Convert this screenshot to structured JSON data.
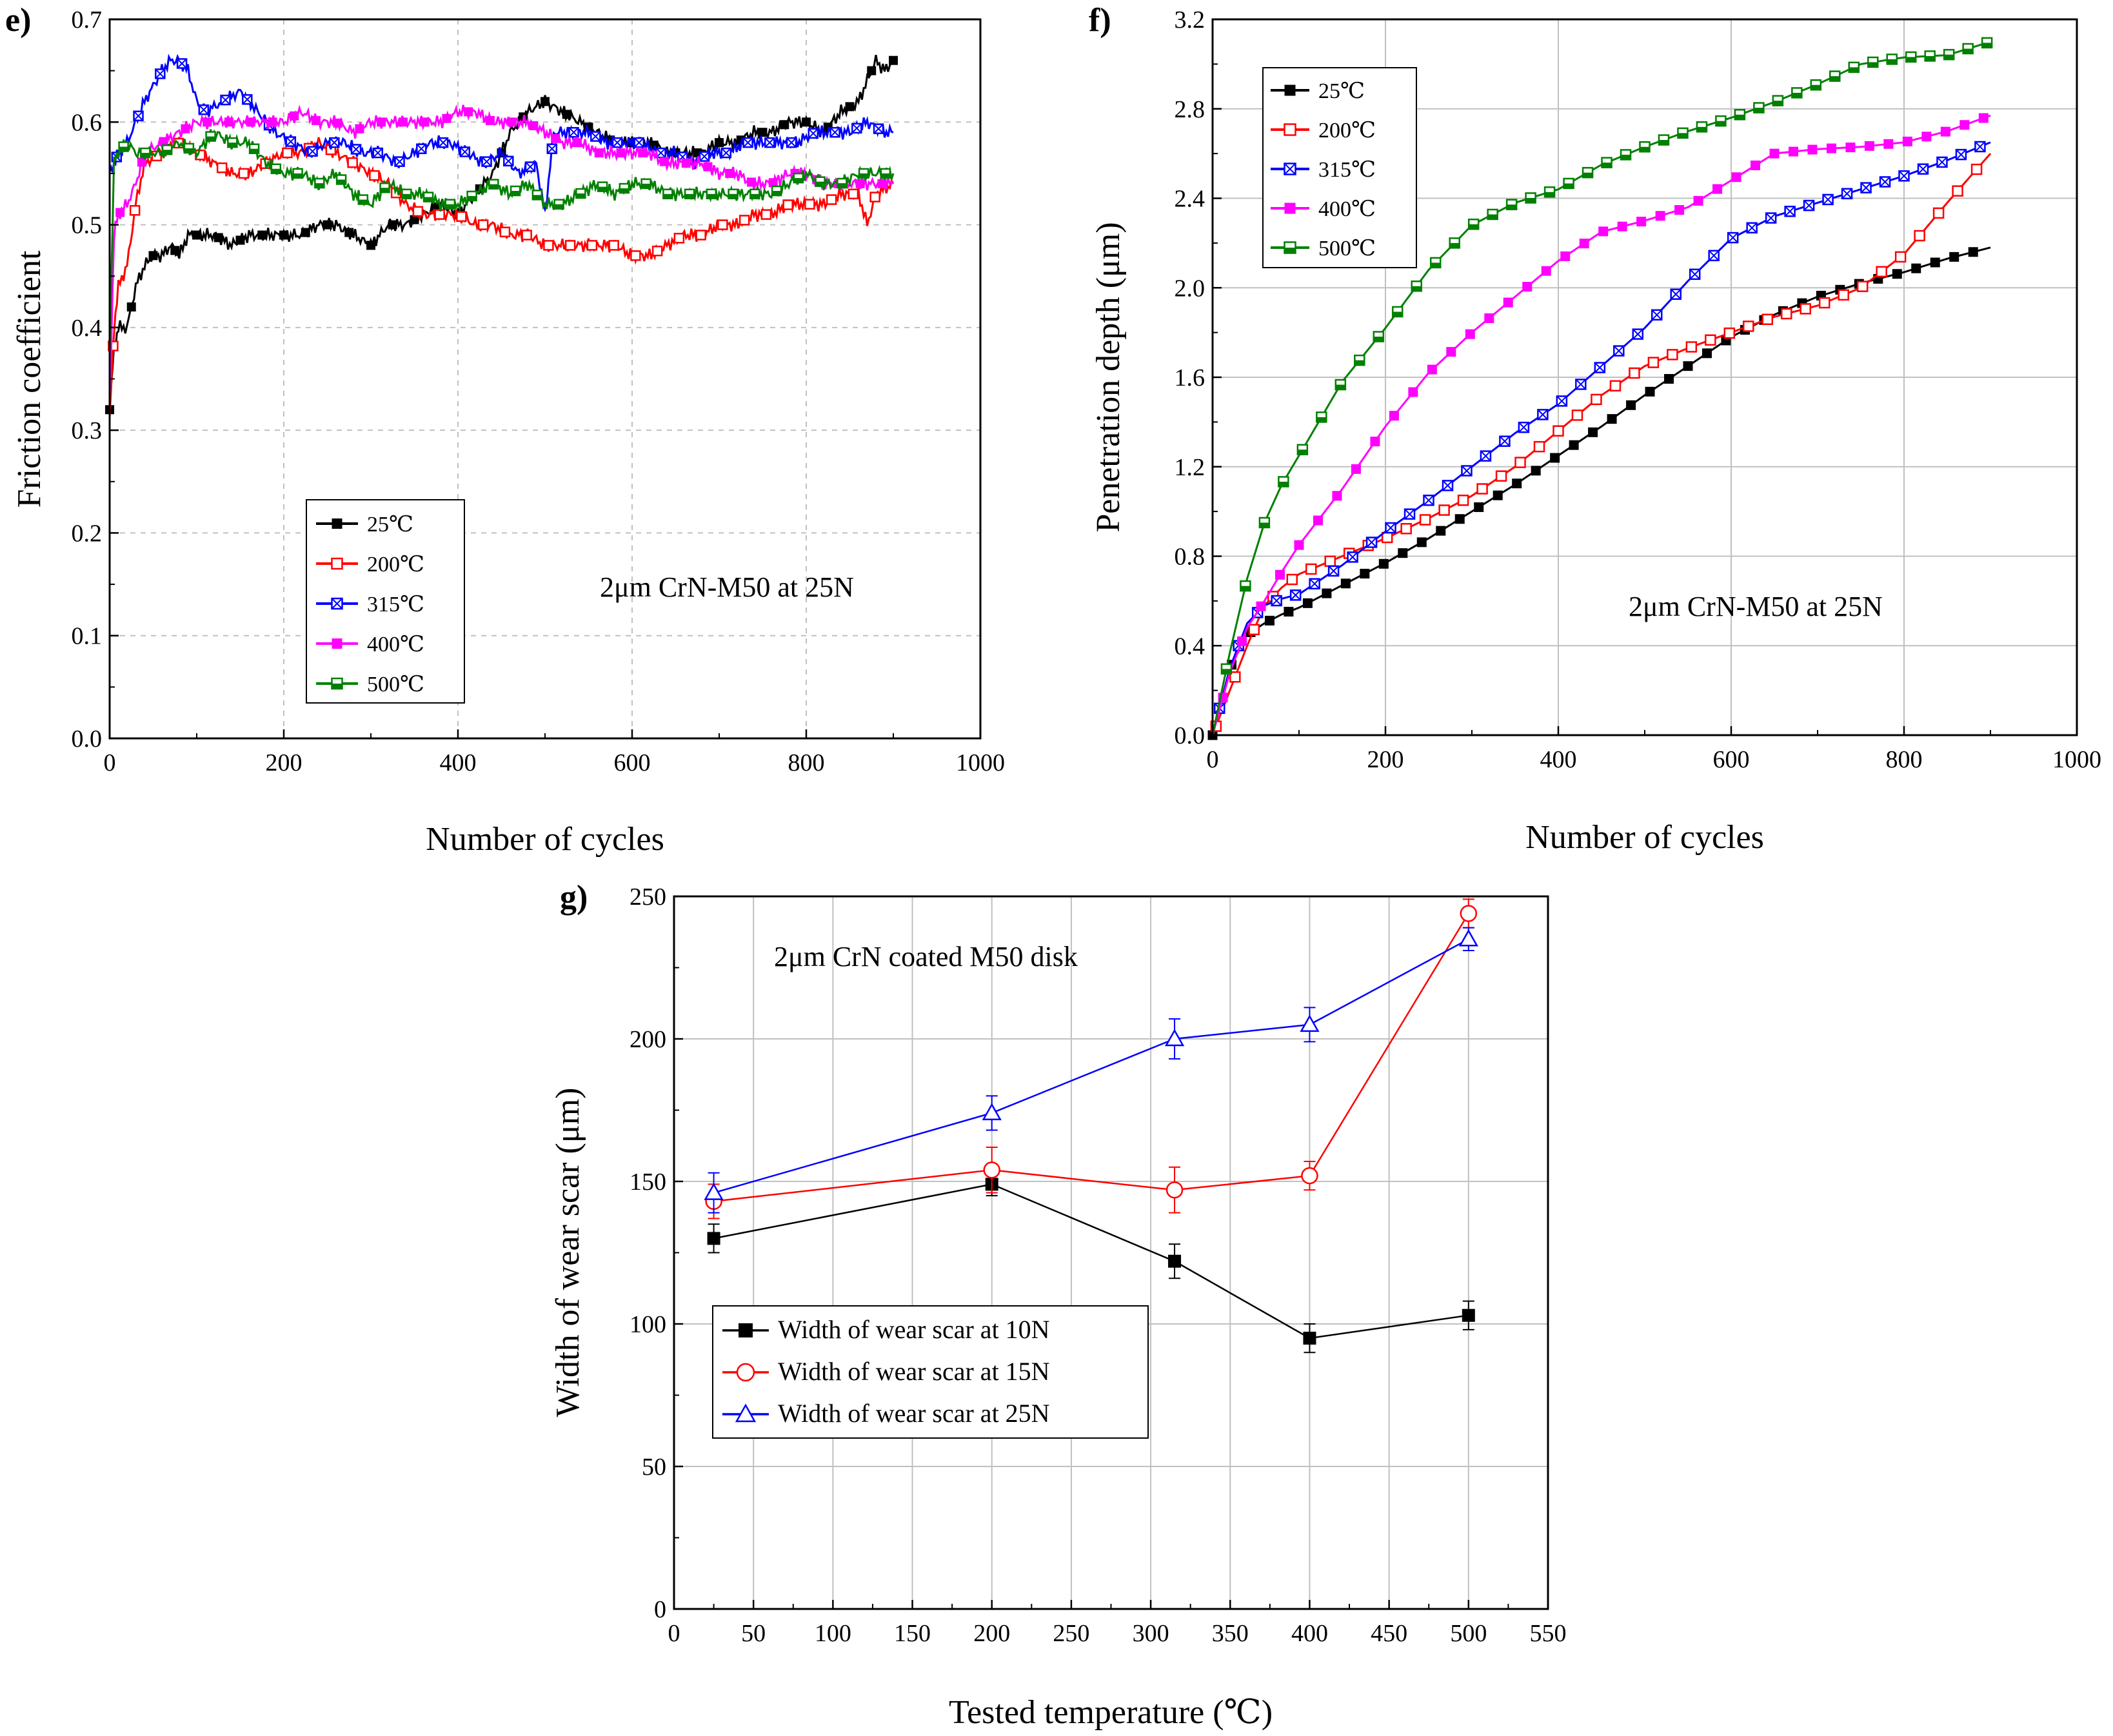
{
  "colors": {
    "25C": "#000000",
    "200C": "#ff0000",
    "315C": "#0000ff",
    "400C": "#ff00ff",
    "500C": "#008000",
    "10N": "#000000",
    "15N": "#ff0000",
    "25N": "#0000ff",
    "grid": "#c0c0c0"
  },
  "chart_data": [
    {
      "panel": "e)",
      "type": "line",
      "title": "",
      "annotation": "2μm CrN-M50 at 25N",
      "xlabel": "Number of cycles",
      "ylabel": "Friction coefficient",
      "xlim": [
        0,
        1000
      ],
      "ylim": [
        0,
        0.7
      ],
      "xticks": [
        0,
        200,
        400,
        600,
        800,
        1000
      ],
      "yticks": [
        0.0,
        0.1,
        0.2,
        0.3,
        0.4,
        0.5,
        0.6,
        0.7
      ],
      "xtick_labels": [
        "0",
        "200",
        "400",
        "600",
        "800",
        "1000"
      ],
      "ytick_labels": [
        "0.0",
        "0.1",
        "0.2",
        "0.3",
        "0.4",
        "0.5",
        "0.6",
        "0.7"
      ],
      "legend_position": "bottom-left",
      "series": [
        {
          "name": "25℃",
          "key": "25C",
          "marker": "square-filled",
          "x": [
            0,
            5,
            10,
            20,
            30,
            40,
            50,
            60,
            70,
            80,
            90,
            100,
            120,
            140,
            160,
            180,
            200,
            220,
            240,
            260,
            280,
            300,
            320,
            340,
            360,
            380,
            400,
            420,
            440,
            460,
            480,
            500,
            520,
            540,
            560,
            580,
            600,
            620,
            640,
            660,
            680,
            700,
            720,
            740,
            760,
            780,
            800,
            820,
            840,
            860,
            880,
            890,
            900
          ],
          "y": [
            0.32,
            0.38,
            0.4,
            0.4,
            0.44,
            0.46,
            0.47,
            0.47,
            0.48,
            0.47,
            0.49,
            0.49,
            0.49,
            0.48,
            0.49,
            0.49,
            0.49,
            0.49,
            0.5,
            0.5,
            0.49,
            0.48,
            0.5,
            0.5,
            0.51,
            0.52,
            0.51,
            0.53,
            0.55,
            0.59,
            0.61,
            0.62,
            0.61,
            0.6,
            0.59,
            0.58,
            0.58,
            0.58,
            0.57,
            0.57,
            0.57,
            0.58,
            0.58,
            0.59,
            0.59,
            0.6,
            0.6,
            0.59,
            0.61,
            0.62,
            0.66,
            0.65,
            0.66
          ]
        },
        {
          "name": "200℃",
          "key": "200C",
          "marker": "square-open",
          "x": [
            0,
            5,
            10,
            20,
            30,
            40,
            60,
            80,
            100,
            120,
            140,
            160,
            180,
            200,
            220,
            240,
            260,
            280,
            300,
            320,
            340,
            360,
            380,
            400,
            420,
            440,
            460,
            480,
            500,
            520,
            540,
            560,
            580,
            600,
            620,
            640,
            660,
            680,
            700,
            720,
            740,
            760,
            780,
            800,
            820,
            840,
            860,
            870,
            880,
            900
          ],
          "y": [
            0.31,
            0.4,
            0.44,
            0.46,
            0.52,
            0.56,
            0.57,
            0.58,
            0.57,
            0.56,
            0.55,
            0.55,
            0.56,
            0.57,
            0.57,
            0.58,
            0.57,
            0.56,
            0.55,
            0.54,
            0.52,
            0.51,
            0.51,
            0.51,
            0.5,
            0.5,
            0.49,
            0.49,
            0.48,
            0.48,
            0.48,
            0.48,
            0.48,
            0.47,
            0.47,
            0.48,
            0.49,
            0.49,
            0.5,
            0.5,
            0.51,
            0.51,
            0.52,
            0.52,
            0.52,
            0.53,
            0.53,
            0.5,
            0.53,
            0.54
          ]
        },
        {
          "name": "315℃",
          "key": "315C",
          "marker": "box-x",
          "x": [
            0,
            5,
            10,
            20,
            30,
            40,
            60,
            70,
            80,
            90,
            100,
            110,
            130,
            150,
            170,
            190,
            210,
            230,
            250,
            270,
            290,
            310,
            330,
            350,
            370,
            390,
            410,
            430,
            450,
            470,
            490,
            500,
            510,
            530,
            550,
            570,
            590,
            610,
            630,
            650,
            670,
            690,
            710,
            730,
            750,
            770,
            790,
            810,
            830,
            850,
            870,
            890,
            900
          ],
          "y": [
            0.55,
            0.56,
            0.57,
            0.58,
            0.6,
            0.62,
            0.65,
            0.66,
            0.66,
            0.65,
            0.62,
            0.61,
            0.62,
            0.63,
            0.61,
            0.59,
            0.58,
            0.57,
            0.58,
            0.58,
            0.57,
            0.57,
            0.56,
            0.57,
            0.58,
            0.58,
            0.57,
            0.56,
            0.57,
            0.55,
            0.56,
            0.51,
            0.59,
            0.59,
            0.59,
            0.58,
            0.58,
            0.58,
            0.57,
            0.57,
            0.56,
            0.57,
            0.57,
            0.58,
            0.58,
            0.58,
            0.58,
            0.59,
            0.59,
            0.59,
            0.6,
            0.59,
            0.59
          ]
        },
        {
          "name": "400℃",
          "key": "400C",
          "marker": "square-filled",
          "x": [
            0,
            5,
            10,
            20,
            30,
            40,
            60,
            80,
            100,
            120,
            140,
            160,
            180,
            200,
            220,
            240,
            260,
            280,
            300,
            320,
            340,
            360,
            380,
            400,
            420,
            440,
            460,
            480,
            500,
            520,
            540,
            560,
            580,
            600,
            620,
            640,
            660,
            680,
            700,
            720,
            740,
            760,
            780,
            800,
            820,
            840,
            860,
            880,
            900
          ],
          "y": [
            0.33,
            0.49,
            0.51,
            0.52,
            0.54,
            0.57,
            0.58,
            0.59,
            0.6,
            0.6,
            0.6,
            0.6,
            0.6,
            0.6,
            0.61,
            0.6,
            0.6,
            0.59,
            0.6,
            0.6,
            0.6,
            0.6,
            0.6,
            0.61,
            0.61,
            0.6,
            0.6,
            0.6,
            0.59,
            0.58,
            0.58,
            0.57,
            0.57,
            0.57,
            0.57,
            0.56,
            0.56,
            0.56,
            0.55,
            0.55,
            0.54,
            0.54,
            0.55,
            0.55,
            0.54,
            0.54,
            0.54,
            0.54,
            0.54
          ]
        },
        {
          "name": "500℃",
          "key": "500C",
          "marker": "square-half",
          "x": [
            0,
            5,
            10,
            20,
            30,
            40,
            60,
            80,
            100,
            120,
            140,
            160,
            180,
            200,
            220,
            240,
            260,
            280,
            300,
            320,
            340,
            360,
            380,
            400,
            420,
            440,
            460,
            480,
            500,
            520,
            540,
            560,
            580,
            600,
            620,
            640,
            660,
            680,
            700,
            720,
            740,
            760,
            780,
            800,
            820,
            840,
            860,
            880,
            900
          ],
          "y": [
            0.38,
            0.56,
            0.57,
            0.58,
            0.57,
            0.57,
            0.57,
            0.58,
            0.57,
            0.59,
            0.58,
            0.58,
            0.56,
            0.55,
            0.55,
            0.54,
            0.55,
            0.53,
            0.52,
            0.54,
            0.53,
            0.53,
            0.52,
            0.52,
            0.53,
            0.54,
            0.53,
            0.54,
            0.52,
            0.52,
            0.53,
            0.54,
            0.53,
            0.54,
            0.54,
            0.53,
            0.53,
            0.53,
            0.53,
            0.53,
            0.53,
            0.53,
            0.54,
            0.55,
            0.54,
            0.54,
            0.55,
            0.55,
            0.55
          ]
        }
      ]
    },
    {
      "panel": "f)",
      "type": "line",
      "title": "",
      "annotation": "2μm CrN-M50 at 25N",
      "xlabel": "Number of cycles",
      "ylabel": "Penetration depth (μm)",
      "xlim": [
        0,
        1000
      ],
      "ylim": [
        0,
        3.2
      ],
      "xticks": [
        0,
        200,
        400,
        600,
        800,
        1000
      ],
      "yticks": [
        0.0,
        0.4,
        0.8,
        1.2,
        1.6,
        2.0,
        2.4,
        2.8,
        3.2
      ],
      "xtick_labels": [
        "0",
        "200",
        "400",
        "600",
        "800",
        "1000"
      ],
      "ytick_labels": [
        "0.0",
        "0.4",
        "0.8",
        "1.2",
        "1.6",
        "2.0",
        "2.4",
        "2.8",
        "3.2"
      ],
      "legend_position": "top-left",
      "series": [
        {
          "name": "25℃",
          "key": "25C",
          "marker": "square-filled",
          "x": [
            0,
            20,
            40,
            60,
            80,
            100,
            150,
            200,
            250,
            300,
            350,
            400,
            450,
            500,
            550,
            600,
            650,
            700,
            750,
            800,
            850,
            900
          ],
          "y": [
            0.0,
            0.3,
            0.45,
            0.5,
            0.54,
            0.57,
            0.67,
            0.77,
            0.88,
            1.0,
            1.12,
            1.25,
            1.38,
            1.52,
            1.65,
            1.78,
            1.88,
            1.96,
            2.02,
            2.07,
            2.13,
            2.18
          ]
        },
        {
          "name": "200℃",
          "key": "200C",
          "marker": "square-open",
          "x": [
            0,
            20,
            40,
            60,
            80,
            100,
            150,
            200,
            250,
            300,
            350,
            400,
            450,
            500,
            550,
            600,
            650,
            700,
            750,
            800,
            850,
            900
          ],
          "y": [
            0.0,
            0.2,
            0.4,
            0.58,
            0.66,
            0.72,
            0.8,
            0.88,
            0.97,
            1.07,
            1.2,
            1.36,
            1.52,
            1.65,
            1.73,
            1.8,
            1.87,
            1.92,
            2.0,
            2.15,
            2.38,
            2.6
          ]
        },
        {
          "name": "315℃",
          "key": "315C",
          "marker": "box-x",
          "x": [
            0,
            20,
            40,
            60,
            80,
            100,
            150,
            200,
            250,
            300,
            350,
            400,
            450,
            500,
            550,
            600,
            650,
            700,
            750,
            800,
            850,
            900
          ],
          "y": [
            0.0,
            0.3,
            0.5,
            0.58,
            0.61,
            0.63,
            0.76,
            0.91,
            1.05,
            1.2,
            1.35,
            1.48,
            1.65,
            1.82,
            2.03,
            2.22,
            2.32,
            2.38,
            2.44,
            2.5,
            2.57,
            2.65
          ]
        },
        {
          "name": "400℃",
          "key": "400C",
          "marker": "square-filled",
          "x": [
            0,
            20,
            40,
            60,
            80,
            100,
            150,
            200,
            250,
            300,
            350,
            400,
            450,
            500,
            550,
            600,
            650,
            700,
            750,
            800,
            850,
            900
          ],
          "y": [
            0.0,
            0.28,
            0.48,
            0.6,
            0.73,
            0.85,
            1.1,
            1.38,
            1.62,
            1.8,
            1.96,
            2.12,
            2.25,
            2.3,
            2.36,
            2.48,
            2.6,
            2.62,
            2.63,
            2.65,
            2.7,
            2.77
          ]
        },
        {
          "name": "500℃",
          "key": "500C",
          "marker": "square-half",
          "x": [
            0,
            20,
            40,
            60,
            80,
            100,
            150,
            200,
            250,
            300,
            350,
            400,
            450,
            500,
            550,
            600,
            650,
            700,
            750,
            800,
            850,
            900
          ],
          "y": [
            0.0,
            0.37,
            0.7,
            0.95,
            1.12,
            1.25,
            1.58,
            1.82,
            2.08,
            2.28,
            2.38,
            2.44,
            2.55,
            2.63,
            2.7,
            2.76,
            2.83,
            2.91,
            3.0,
            3.03,
            3.04,
            3.1
          ]
        }
      ]
    },
    {
      "panel": "g)",
      "type": "line",
      "title": "",
      "annotation": "2μm CrN coated M50 disk",
      "xlabel": "Tested temperature (℃)",
      "ylabel": "Width of wear scar (μm)",
      "xlim": [
        0,
        550
      ],
      "ylim": [
        0,
        250
      ],
      "xticks": [
        0,
        50,
        100,
        150,
        200,
        250,
        300,
        350,
        400,
        450,
        500,
        550
      ],
      "yticks": [
        0,
        50,
        100,
        150,
        200,
        250
      ],
      "xtick_labels": [
        "0",
        "50",
        "100",
        "150",
        "200",
        "250",
        "300",
        "350",
        "400",
        "450",
        "500",
        "550"
      ],
      "ytick_labels": [
        "0",
        "50",
        "100",
        "150",
        "200",
        "250"
      ],
      "legend_position": "bottom-left",
      "series": [
        {
          "name": "Width of wear scar at 10N",
          "key": "10N",
          "marker": "square-filled",
          "x": [
            25,
            200,
            315,
            400,
            500
          ],
          "y": [
            130,
            149,
            122,
            95,
            103
          ],
          "err": [
            5,
            4,
            6,
            5,
            5
          ]
        },
        {
          "name": "Width of wear scar at 15N",
          "key": "15N",
          "marker": "circle-open",
          "x": [
            25,
            200,
            315,
            400,
            500
          ],
          "y": [
            143,
            154,
            147,
            152,
            244
          ],
          "err": [
            6,
            8,
            8,
            5,
            5
          ]
        },
        {
          "name": "Width of wear scar at 25N",
          "key": "25N",
          "marker": "triangle-open",
          "x": [
            25,
            200,
            315,
            400,
            500
          ],
          "y": [
            146,
            174,
            200,
            205,
            235
          ],
          "err": [
            7,
            6,
            7,
            6,
            4
          ]
        }
      ]
    }
  ]
}
